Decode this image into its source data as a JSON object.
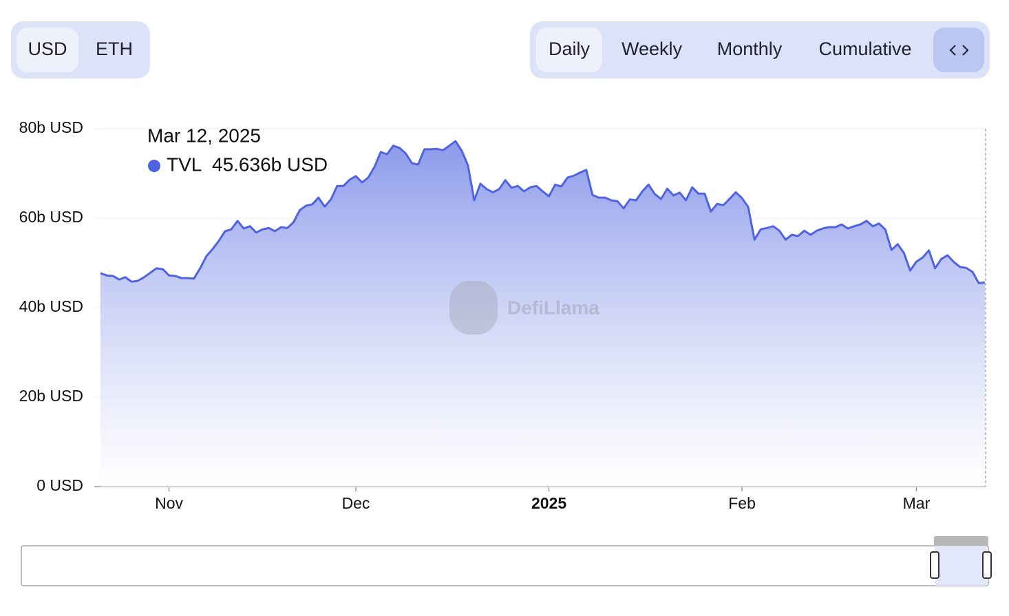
{
  "currency_toggle": [
    "USD",
    "ETH"
  ],
  "period_toggle": [
    "Daily",
    "Weekly",
    "Monthly",
    "Cumulative"
  ],
  "watermark": "DefiLlama",
  "tooltip": {
    "date": "Mar 12, 2025",
    "series": "TVL",
    "value": "45.636b USD"
  },
  "chart_data": {
    "type": "area",
    "series": [
      {
        "name": "TVL",
        "color": "#4f63e0",
        "values": [
          47.7,
          47.2,
          47.1,
          46.3,
          46.8,
          45.8,
          46.0,
          46.8,
          47.8,
          48.8,
          48.6,
          47.2,
          47.1,
          46.6,
          46.6,
          46.5,
          48.8,
          51.5,
          53.1,
          54.9,
          57.1,
          57.5,
          59.4,
          57.7,
          58.2,
          56.8,
          57.5,
          57.8,
          57.1,
          58.0,
          57.8,
          59.1,
          61.8,
          62.8,
          63.1,
          64.6,
          62.6,
          64.2,
          67.2,
          67.2,
          68.6,
          69.4,
          68.0,
          69.1,
          71.5,
          74.8,
          74.3,
          76.2,
          75.7,
          74.5,
          72.3,
          72.0,
          75.4,
          75.4,
          75.5,
          75.2,
          76.2,
          77.2,
          75.1,
          71.8,
          64.0,
          67.7,
          66.5,
          65.8,
          66.5,
          68.5,
          66.8,
          67.2,
          66.0,
          66.9,
          67.2,
          66.0,
          64.9,
          67.5,
          67.1,
          69.1,
          69.5,
          70.2,
          70.8,
          65.2,
          64.6,
          64.6,
          64.0,
          63.8,
          62.2,
          64.2,
          64.0,
          66.0,
          67.5,
          65.4,
          64.3,
          66.6,
          65.1,
          65.7,
          64.0,
          66.9,
          65.5,
          65.5,
          61.5,
          63.2,
          62.9,
          64.3,
          65.8,
          64.5,
          62.5,
          55.2,
          57.5,
          57.8,
          58.2,
          57.2,
          55.2,
          56.3,
          56.0,
          57.2,
          56.3,
          57.2,
          57.7,
          58.0,
          58.0,
          58.6,
          57.7,
          58.2,
          58.6,
          59.4,
          58.2,
          58.8,
          57.5,
          52.9,
          54.2,
          52.2,
          48.3,
          50.3,
          51.2,
          52.8,
          48.8,
          50.9,
          51.7,
          50.2,
          49.1,
          48.9,
          48.0,
          45.5,
          45.636
        ]
      }
    ],
    "xlim": [
      0,
      142
    ],
    "xticks": [
      {
        "value": 11,
        "label": "Nov"
      },
      {
        "value": 41,
        "label": "Dec"
      },
      {
        "value": 72,
        "label": "2025"
      },
      {
        "value": 103,
        "label": "Feb"
      },
      {
        "value": 131,
        "label": "Mar"
      }
    ],
    "ylim": [
      0,
      80
    ],
    "yticks": [
      {
        "value": 0,
        "label": "0 USD"
      },
      {
        "value": 20,
        "label": "20b USD"
      },
      {
        "value": 40,
        "label": "40b USD"
      },
      {
        "value": 60,
        "label": "60b USD"
      },
      {
        "value": 80,
        "label": "80b USD"
      }
    ],
    "grid": true
  }
}
